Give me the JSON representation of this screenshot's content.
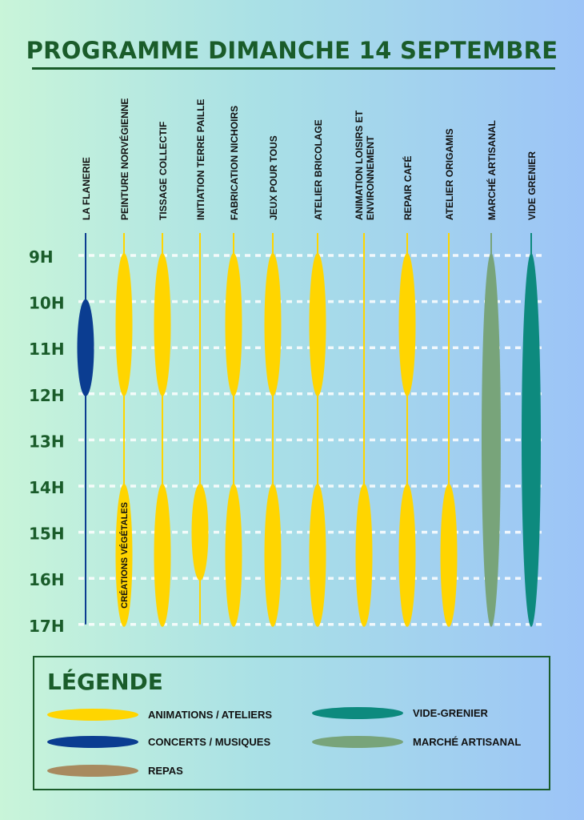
{
  "title": "PROGRAMME DIMANCHE 14 SEPTEMBRE",
  "colors": {
    "animations": "#ffd500",
    "concerts": "#0b3d91",
    "repas": "#a88a5f",
    "vide_grenier": "#0d8a7e",
    "marche": "#78a47a",
    "text_green": "#1a5c2a"
  },
  "hours": [
    "9H",
    "10H",
    "11H",
    "12H",
    "13H",
    "14H",
    "15H",
    "16H",
    "17H"
  ],
  "activities": [
    {
      "name": "LA FLANERIE",
      "line_color": "concerts",
      "slots": [
        {
          "start": 10,
          "end": 12,
          "cat": "concerts"
        }
      ]
    },
    {
      "name": "PEINTURE NORVÉGIENNE",
      "line_color": "animations",
      "slots": [
        {
          "start": 9,
          "end": 12,
          "cat": "animations"
        },
        {
          "start": 14,
          "end": 17,
          "cat": "animations",
          "label": "CRÉATIONS VÉGÉTALES"
        }
      ]
    },
    {
      "name": "TISSAGE COLLECTIF",
      "line_color": "animations",
      "slots": [
        {
          "start": 9,
          "end": 12,
          "cat": "animations"
        },
        {
          "start": 14,
          "end": 17,
          "cat": "animations"
        }
      ]
    },
    {
      "name": "INITIATION TERRE PAILLE",
      "line_color": "animations",
      "slots": [
        {
          "start": 14,
          "end": 16,
          "cat": "animations"
        }
      ]
    },
    {
      "name": "FABRICATION NICHOIRS",
      "line_color": "animations",
      "slots": [
        {
          "start": 9,
          "end": 12,
          "cat": "animations"
        },
        {
          "start": 14,
          "end": 17,
          "cat": "animations"
        }
      ]
    },
    {
      "name": "JEUX POUR TOUS",
      "line_color": "animations",
      "slots": [
        {
          "start": 9,
          "end": 12,
          "cat": "animations"
        },
        {
          "start": 14,
          "end": 17,
          "cat": "animations"
        }
      ]
    },
    {
      "name": "ATELIER BRICOLAGE",
      "line_color": "animations",
      "slots": [
        {
          "start": 9,
          "end": 12,
          "cat": "animations"
        },
        {
          "start": 14,
          "end": 17,
          "cat": "animations"
        }
      ]
    },
    {
      "name": "ANIMATION LOISIRS ET ENVIRONNEMENT",
      "line_color": "animations",
      "slots": [
        {
          "start": 14,
          "end": 17,
          "cat": "animations"
        }
      ]
    },
    {
      "name": "REPAIR CAFÉ",
      "line_color": "animations",
      "slots": [
        {
          "start": 9,
          "end": 12,
          "cat": "animations"
        },
        {
          "start": 14,
          "end": 17,
          "cat": "animations"
        }
      ]
    },
    {
      "name": "ATELIER ORIGAMIS",
      "line_color": "animations",
      "slots": [
        {
          "start": 14,
          "end": 17,
          "cat": "animations"
        }
      ]
    },
    {
      "name": "MARCHÉ ARTISANAL",
      "line_color": "marche",
      "slots": [
        {
          "start": 9,
          "end": 17,
          "cat": "marche"
        }
      ]
    },
    {
      "name": "VIDE GRENIER",
      "line_color": "vide_grenier",
      "slots": [
        {
          "start": 9,
          "end": 17,
          "cat": "vide_grenier"
        }
      ]
    }
  ],
  "legend": {
    "title": "LÉGENDE",
    "items": [
      {
        "label": "ANIMATIONS / ATELIERS",
        "color": "#ffd500"
      },
      {
        "label": "CONCERTS / MUSIQUES",
        "color": "#0b3d91"
      },
      {
        "label": "REPAS",
        "color": "#a88a5f"
      },
      {
        "label": "VIDE-GRENIER",
        "color": "#0d8a7e"
      },
      {
        "label": "MARCHÉ ARTISANAL",
        "color": "#78a47a"
      }
    ]
  }
}
